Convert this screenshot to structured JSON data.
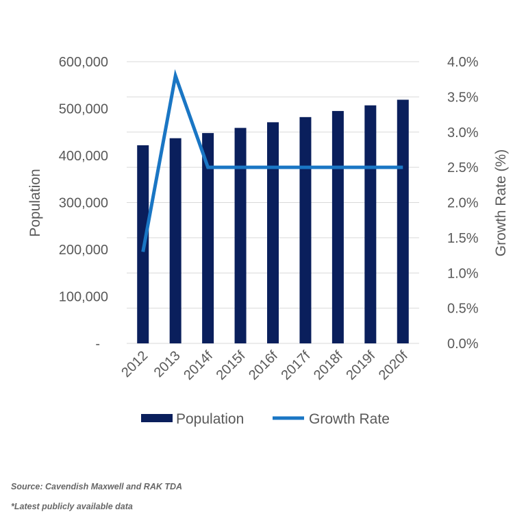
{
  "chart_data": {
    "type": "bar+line",
    "categories": [
      "2012",
      "2013",
      "2014f",
      "2015f",
      "2016f",
      "2017f",
      "2018f",
      "2019f",
      "2020f"
    ],
    "series": [
      {
        "name": "Population",
        "type": "bar",
        "axis": "left",
        "color": "#0a1f5c",
        "values": [
          422000,
          437000,
          448000,
          459000,
          471000,
          482000,
          495000,
          507000,
          519000
        ]
      },
      {
        "name": "Growth Rate",
        "type": "line",
        "axis": "right",
        "color": "#1a76c4",
        "values": [
          1.3,
          3.8,
          2.5,
          2.5,
          2.5,
          2.5,
          2.5,
          2.5,
          2.5
        ]
      }
    ],
    "ylabel": "Population",
    "y2label": "Growth Rate (%)",
    "ylim": [
      0,
      600000
    ],
    "y2lim": [
      0,
      4.0
    ],
    "yticks": [
      "-",
      "100,000",
      "200,000",
      "300,000",
      "400,000",
      "500,000",
      "600,000"
    ],
    "y2ticks": [
      "0.0%",
      "0.5%",
      "1.0%",
      "1.5%",
      "2.0%",
      "2.5%",
      "3.0%",
      "3.5%",
      "4.0%"
    ],
    "grid": true,
    "legend_position": "bottom"
  },
  "notes": {
    "source": "Source: Cavendish Maxwell and RAK TDA",
    "latest": "*Latest publicly available data"
  }
}
